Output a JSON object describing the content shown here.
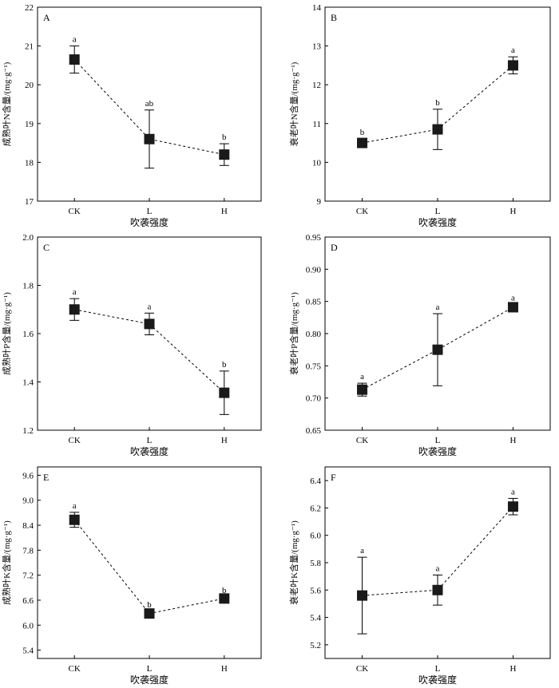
{
  "chart_data": [
    {
      "type": "line",
      "panel_label": "A",
      "ylabel": "成熟叶N含量/(mg·g⁻¹)",
      "xlabel": "吹袭强度",
      "categories": [
        "CK",
        "L",
        "H"
      ],
      "values": [
        20.65,
        18.6,
        18.2
      ],
      "errors": [
        0.35,
        0.75,
        0.28
      ],
      "significance": [
        "a",
        "ab",
        "b"
      ],
      "ylim": [
        17,
        22
      ],
      "yticks": [
        "17",
        "18",
        "19",
        "20",
        "21",
        "22"
      ]
    },
    {
      "type": "line",
      "panel_label": "B",
      "ylabel": "衰老叶N含量/(mg·g⁻¹)",
      "xlabel": "吹袭强度",
      "categories": [
        "CK",
        "L",
        "H"
      ],
      "values": [
        10.5,
        10.85,
        12.5
      ],
      "errors": [
        0.1,
        0.52,
        0.22
      ],
      "significance": [
        "b",
        "b",
        "a"
      ],
      "ylim": [
        9,
        14
      ],
      "yticks": [
        "9",
        "10",
        "11",
        "12",
        "13",
        "14"
      ]
    },
    {
      "type": "line",
      "panel_label": "C",
      "ylabel": "成熟叶P含量/(mg·g⁻¹)",
      "xlabel": "吹袭强度",
      "categories": [
        "CK",
        "L",
        "H"
      ],
      "values": [
        1.7,
        1.64,
        1.355
      ],
      "errors": [
        0.045,
        0.045,
        0.09
      ],
      "significance": [
        "a",
        "a",
        "b"
      ],
      "ylim": [
        1.2,
        2.0
      ],
      "yticks": [
        "1.2",
        "1.4",
        "1.6",
        "1.8",
        "2.0"
      ]
    },
    {
      "type": "line",
      "panel_label": "D",
      "ylabel": "衰老叶P含量/(mg·g⁻¹)",
      "xlabel": "吹袭强度",
      "categories": [
        "CK",
        "L",
        "H"
      ],
      "values": [
        0.713,
        0.775,
        0.841
      ],
      "errors": [
        0.01,
        0.056,
        0.004
      ],
      "significance": [
        "a",
        "a",
        "a"
      ],
      "ylim": [
        0.65,
        0.95
      ],
      "yticks": [
        "0.65",
        "0.70",
        "0.75",
        "0.80",
        "0.85",
        "0.90",
        "0.95"
      ]
    },
    {
      "type": "line",
      "panel_label": "E",
      "ylabel": "成熟叶K含量/(mg·g⁻¹)",
      "xlabel": "吹袭强度",
      "categories": [
        "CK",
        "L",
        "H"
      ],
      "values": [
        8.53,
        6.28,
        6.64
      ],
      "errors": [
        0.18,
        0.05,
        0.04
      ],
      "significance": [
        "a",
        "b",
        "b"
      ],
      "ylim": [
        5.2,
        9.8
      ],
      "yticks": [
        "5.4",
        "6.0",
        "6.6",
        "7.2",
        "7.8",
        "8.4",
        "9.0",
        "9.6"
      ]
    },
    {
      "type": "line",
      "panel_label": "F",
      "ylabel": "衰老叶K含量/(mg·g⁻¹)",
      "xlabel": "吹袭强度",
      "categories": [
        "CK",
        "L",
        "H"
      ],
      "values": [
        5.56,
        5.6,
        6.21
      ],
      "errors": [
        0.28,
        0.11,
        0.06
      ],
      "significance": [
        "a",
        "a",
        "a"
      ],
      "ylim": [
        5.1,
        6.5
      ],
      "yticks": [
        "5.2",
        "5.4",
        "5.6",
        "5.8",
        "6.0",
        "6.2",
        "6.4"
      ]
    }
  ]
}
